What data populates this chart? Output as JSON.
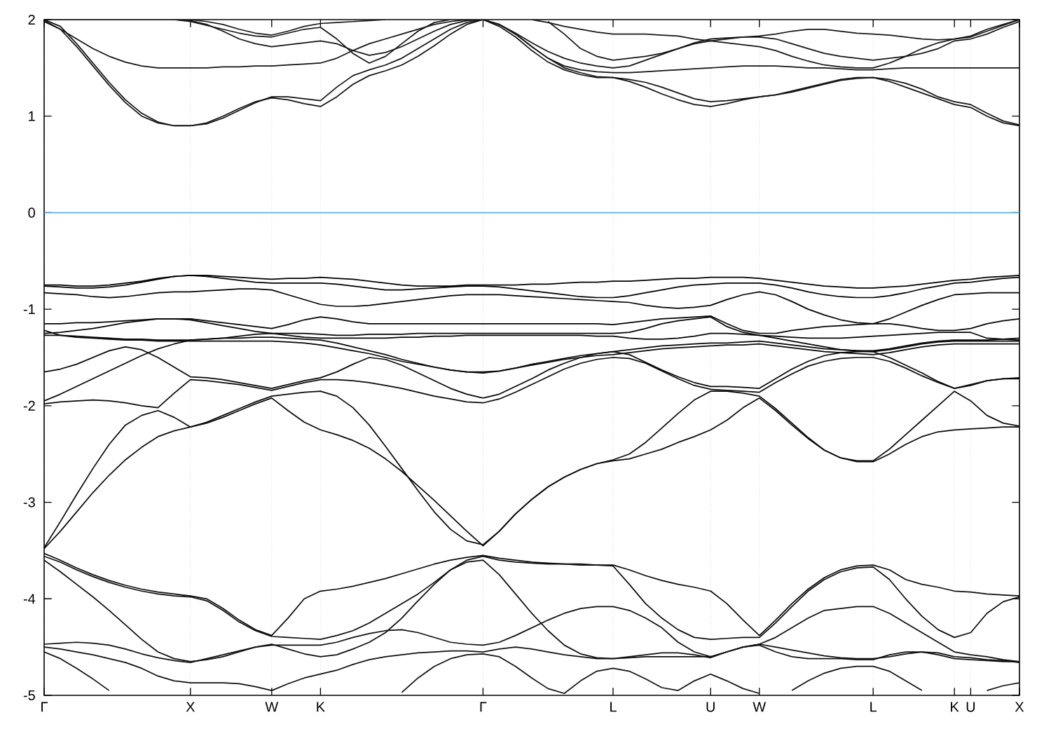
{
  "chart_data": {
    "type": "line",
    "categories": [
      "Γ",
      null,
      null,
      null,
      null,
      null,
      null,
      null,
      null,
      "X",
      null,
      null,
      null,
      null,
      "W",
      null,
      null,
      "K",
      null,
      null,
      null,
      null,
      null,
      null,
      null,
      null,
      null,
      "Γ",
      null,
      null,
      null,
      null,
      null,
      null,
      null,
      "L",
      null,
      null,
      null,
      null,
      null,
      "U",
      null,
      null,
      "W",
      null,
      null,
      null,
      null,
      null,
      null,
      "L",
      null,
      null,
      null,
      null,
      "K",
      "U",
      null,
      null,
      "X"
    ],
    "ylim": [
      -5,
      2
    ],
    "yticks": [
      -5,
      -4,
      -3,
      -2,
      -1,
      0,
      1,
      2
    ],
    "grid": "x",
    "marker": "none",
    "line_style": "solid",
    "ref_lines": [
      {
        "axis": "y",
        "value": 0,
        "color": "#4da6d8"
      }
    ],
    "series": [
      {
        "color": "#000000",
        "values": [
          -0.75,
          -0.75,
          -0.76,
          -0.76,
          -0.75,
          -0.73,
          -0.71,
          -0.68,
          -0.66,
          -0.65,
          -0.65,
          -0.66,
          -0.67,
          -0.68,
          -0.69,
          -0.68,
          -0.68,
          -0.67,
          -0.68,
          -0.69,
          -0.71,
          -0.73,
          -0.75,
          -0.76,
          -0.76,
          -0.76,
          -0.75,
          -0.75,
          -0.75,
          -0.75,
          -0.74,
          -0.74,
          -0.73,
          -0.72,
          -0.72,
          -0.71,
          -0.71,
          -0.7,
          -0.69,
          -0.68,
          -0.68,
          -0.67,
          -0.67,
          -0.67,
          -0.68,
          -0.7,
          -0.72,
          -0.74,
          -0.76,
          -0.77,
          -0.78,
          -0.78,
          -0.77,
          -0.76,
          -0.74,
          -0.72,
          -0.7,
          -0.69,
          -0.67,
          -0.66,
          -0.65
        ]
      },
      {
        "color": "#010101",
        "values": [
          -0.76,
          -0.77,
          -0.78,
          -0.78,
          -0.77,
          -0.75,
          -0.72,
          -0.69,
          -0.66,
          -0.65,
          -0.66,
          -0.68,
          -0.7,
          -0.72,
          -0.73,
          -0.73,
          -0.73,
          -0.73,
          -0.74,
          -0.76,
          -0.78,
          -0.8,
          -0.8,
          -0.79,
          -0.78,
          -0.77,
          -0.76,
          -0.76,
          -0.77,
          -0.79,
          -0.81,
          -0.83,
          -0.85,
          -0.87,
          -0.88,
          -0.88,
          -0.86,
          -0.83,
          -0.8,
          -0.77,
          -0.75,
          -0.74,
          -0.73,
          -0.73,
          -0.73,
          -0.75,
          -0.78,
          -0.82,
          -0.85,
          -0.87,
          -0.88,
          -0.88,
          -0.86,
          -0.83,
          -0.79,
          -0.76,
          -0.73,
          -0.72,
          -0.7,
          -0.68,
          -0.67
        ]
      },
      {
        "color": "#020202",
        "values": [
          -0.83,
          -0.84,
          -0.85,
          -0.87,
          -0.88,
          -0.87,
          -0.85,
          -0.83,
          -0.82,
          -0.82,
          -0.81,
          -0.8,
          -0.79,
          -0.79,
          -0.8,
          -0.85,
          -0.9,
          -0.95,
          -0.97,
          -0.97,
          -0.96,
          -0.94,
          -0.92,
          -0.9,
          -0.88,
          -0.86,
          -0.85,
          -0.85,
          -0.85,
          -0.86,
          -0.87,
          -0.88,
          -0.89,
          -0.9,
          -0.91,
          -0.92,
          -0.93,
          -0.96,
          -0.98,
          -0.99,
          -0.98,
          -0.96,
          -0.9,
          -0.85,
          -0.82,
          -0.85,
          -0.92,
          -1.0,
          -1.06,
          -1.11,
          -1.14,
          -1.15,
          -1.1,
          -1.03,
          -0.96,
          -0.9,
          -0.85,
          -0.84,
          -0.83,
          -0.83,
          -0.83
        ]
      },
      {
        "color": "#030303",
        "values": [
          -1.15,
          -1.15,
          -1.14,
          -1.14,
          -1.13,
          -1.12,
          -1.11,
          -1.1,
          -1.1,
          -1.1,
          -1.12,
          -1.14,
          -1.16,
          -1.18,
          -1.2,
          -1.16,
          -1.11,
          -1.08,
          -1.1,
          -1.13,
          -1.15,
          -1.15,
          -1.15,
          -1.15,
          -1.15,
          -1.15,
          -1.15,
          -1.15,
          -1.15,
          -1.15,
          -1.15,
          -1.15,
          -1.15,
          -1.15,
          -1.15,
          -1.16,
          -1.14,
          -1.12,
          -1.1,
          -1.09,
          -1.08,
          -1.07,
          -1.15,
          -1.22,
          -1.25,
          -1.25,
          -1.22,
          -1.2,
          -1.18,
          -1.17,
          -1.16,
          -1.15,
          -1.15,
          -1.17,
          -1.2,
          -1.22,
          -1.22,
          -1.2,
          -1.15,
          -1.12,
          -1.1
        ]
      },
      {
        "color": "#040404",
        "values": [
          -1.25,
          -1.24,
          -1.22,
          -1.2,
          -1.17,
          -1.14,
          -1.12,
          -1.1,
          -1.1,
          -1.11,
          -1.14,
          -1.17,
          -1.2,
          -1.23,
          -1.25,
          -1.25,
          -1.25,
          -1.26,
          -1.27,
          -1.27,
          -1.26,
          -1.26,
          -1.26,
          -1.25,
          -1.25,
          -1.25,
          -1.25,
          -1.25,
          -1.25,
          -1.25,
          -1.25,
          -1.25,
          -1.25,
          -1.25,
          -1.25,
          -1.25,
          -1.24,
          -1.2,
          -1.15,
          -1.12,
          -1.1,
          -1.08,
          -1.18,
          -1.24,
          -1.27,
          -1.28,
          -1.29,
          -1.3,
          -1.3,
          -1.3,
          -1.29,
          -1.28,
          -1.27,
          -1.26,
          -1.25,
          -1.24,
          -1.24,
          -1.24,
          -1.3,
          -1.31,
          -1.32
        ]
      },
      {
        "color": "#050505",
        "values": [
          -1.27,
          -1.27,
          -1.28,
          -1.29,
          -1.3,
          -1.31,
          -1.31,
          -1.32,
          -1.32,
          -1.32,
          -1.31,
          -1.3,
          -1.28,
          -1.26,
          -1.25,
          -1.27,
          -1.29,
          -1.3,
          -1.3,
          -1.3,
          -1.3,
          -1.3,
          -1.29,
          -1.29,
          -1.28,
          -1.28,
          -1.27,
          -1.27,
          -1.27,
          -1.27,
          -1.27,
          -1.27,
          -1.27,
          -1.27,
          -1.28,
          -1.28,
          -1.3,
          -1.31,
          -1.31,
          -1.3,
          -1.28,
          -1.25,
          -1.25,
          -1.26,
          -1.27,
          -1.3,
          -1.33,
          -1.36,
          -1.39,
          -1.42,
          -1.43,
          -1.43,
          -1.41,
          -1.38,
          -1.35,
          -1.33,
          -1.32,
          -1.32,
          -1.32,
          -1.31,
          -1.3
        ]
      },
      {
        "color": "#060606",
        "values": [
          -1.22,
          -1.27,
          -1.29,
          -1.3,
          -1.31,
          -1.32,
          -1.32,
          -1.33,
          -1.33,
          -1.33,
          -1.33,
          -1.33,
          -1.33,
          -1.33,
          -1.33,
          -1.34,
          -1.35,
          -1.37,
          -1.4,
          -1.43,
          -1.46,
          -1.5,
          -1.54,
          -1.57,
          -1.6,
          -1.63,
          -1.65,
          -1.65,
          -1.64,
          -1.61,
          -1.57,
          -1.54,
          -1.51,
          -1.48,
          -1.46,
          -1.44,
          -1.42,
          -1.4,
          -1.38,
          -1.37,
          -1.36,
          -1.35,
          -1.35,
          -1.34,
          -1.33,
          -1.35,
          -1.37,
          -1.39,
          -1.41,
          -1.42,
          -1.43,
          -1.44,
          -1.42,
          -1.39,
          -1.36,
          -1.34,
          -1.33,
          -1.33,
          -1.33,
          -1.33,
          -1.33
        ]
      },
      {
        "color": "#070707",
        "values": [
          -1.65,
          -1.62,
          -1.57,
          -1.5,
          -1.43,
          -1.39,
          -1.42,
          -1.5,
          -1.6,
          -1.7,
          -1.71,
          -1.73,
          -1.76,
          -1.79,
          -1.82,
          -1.78,
          -1.74,
          -1.71,
          -1.65,
          -1.57,
          -1.5,
          -1.52,
          -1.58,
          -1.66,
          -1.74,
          -1.82,
          -1.88,
          -1.92,
          -1.88,
          -1.8,
          -1.72,
          -1.63,
          -1.56,
          -1.5,
          -1.46,
          -1.44,
          -1.47,
          -1.55,
          -1.63,
          -1.7,
          -1.76,
          -1.8,
          -1.8,
          -1.81,
          -1.82,
          -1.72,
          -1.62,
          -1.54,
          -1.48,
          -1.45,
          -1.44,
          -1.44,
          -1.5,
          -1.58,
          -1.66,
          -1.75,
          -1.82,
          -1.79,
          -1.74,
          -1.72,
          -1.71
        ]
      },
      {
        "color": "#080808",
        "values": [
          -1.95,
          -1.88,
          -1.8,
          -1.72,
          -1.64,
          -1.56,
          -1.48,
          -1.41,
          -1.36,
          -1.32,
          -1.31,
          -1.3,
          -1.3,
          -1.29,
          -1.29,
          -1.3,
          -1.31,
          -1.32,
          -1.35,
          -1.39,
          -1.43,
          -1.47,
          -1.52,
          -1.56,
          -1.6,
          -1.63,
          -1.65,
          -1.66,
          -1.64,
          -1.61,
          -1.58,
          -1.55,
          -1.52,
          -1.5,
          -1.48,
          -1.47,
          -1.45,
          -1.43,
          -1.41,
          -1.4,
          -1.39,
          -1.38,
          -1.37,
          -1.37,
          -1.36,
          -1.38,
          -1.4,
          -1.42,
          -1.44,
          -1.45,
          -1.46,
          -1.47,
          -1.45,
          -1.42,
          -1.39,
          -1.37,
          -1.36,
          -1.36,
          -1.36,
          -1.36,
          -1.36
        ]
      },
      {
        "color": "#090909",
        "values": [
          -1.98,
          -1.96,
          -1.95,
          -1.94,
          -1.95,
          -1.97,
          -2.0,
          -2.02,
          -1.87,
          -1.73,
          -1.74,
          -1.76,
          -1.78,
          -1.81,
          -1.84,
          -1.8,
          -1.76,
          -1.73,
          -1.73,
          -1.74,
          -1.76,
          -1.79,
          -1.82,
          -1.86,
          -1.9,
          -1.93,
          -1.96,
          -1.97,
          -1.93,
          -1.86,
          -1.78,
          -1.7,
          -1.62,
          -1.56,
          -1.52,
          -1.5,
          -1.51,
          -1.56,
          -1.64,
          -1.72,
          -1.79,
          -1.83,
          -1.84,
          -1.85,
          -1.86,
          -1.76,
          -1.67,
          -1.59,
          -1.54,
          -1.51,
          -1.5,
          -1.5,
          -1.54,
          -1.61,
          -1.69,
          -1.76,
          -1.82,
          -1.78,
          -1.74,
          -1.72,
          -1.72
        ]
      },
      {
        "color": "#0a0a0a",
        "values": [
          -3.47,
          -3.2,
          -2.92,
          -2.65,
          -2.4,
          -2.2,
          -2.1,
          -2.05,
          -2.12,
          -2.22,
          -2.18,
          -2.12,
          -2.05,
          -1.98,
          -1.92,
          -2.05,
          -2.17,
          -2.25,
          -2.3,
          -2.36,
          -2.44,
          -2.55,
          -2.68,
          -2.83,
          -2.98,
          -3.14,
          -3.3,
          -3.45,
          -3.3,
          -3.12,
          -2.97,
          -2.84,
          -2.74,
          -2.66,
          -2.6,
          -2.57,
          -2.55,
          -2.5,
          -2.45,
          -2.38,
          -2.32,
          -2.25,
          -2.15,
          -2.02,
          -1.92,
          -2.05,
          -2.2,
          -2.34,
          -2.46,
          -2.54,
          -2.58,
          -2.58,
          -2.5,
          -2.4,
          -2.32,
          -2.27,
          -2.25,
          -2.24,
          -2.23,
          -2.22,
          -2.22
        ]
      },
      {
        "color": "#0b0b0b",
        "values": [
          -3.48,
          -3.3,
          -3.1,
          -2.9,
          -2.72,
          -2.56,
          -2.43,
          -2.32,
          -2.26,
          -2.22,
          -2.17,
          -2.1,
          -2.03,
          -1.96,
          -1.9,
          -1.88,
          -1.86,
          -1.85,
          -1.9,
          -2.02,
          -2.2,
          -2.42,
          -2.65,
          -2.88,
          -3.1,
          -3.28,
          -3.4,
          -3.44,
          -3.3,
          -3.12,
          -2.97,
          -2.84,
          -2.74,
          -2.66,
          -2.6,
          -2.56,
          -2.5,
          -2.38,
          -2.23,
          -2.08,
          -1.94,
          -1.85,
          -1.85,
          -1.87,
          -1.9,
          -2.03,
          -2.18,
          -2.33,
          -2.46,
          -2.54,
          -2.57,
          -2.57,
          -2.45,
          -2.3,
          -2.15,
          -2.0,
          -1.85,
          -1.95,
          -2.1,
          -2.18,
          -2.21
        ]
      },
      {
        "color": "#0c0c0c",
        "values": [
          -3.53,
          -3.6,
          -3.68,
          -3.75,
          -3.81,
          -3.86,
          -3.9,
          -3.93,
          -3.95,
          -3.97,
          -4.0,
          -4.1,
          -4.22,
          -4.32,
          -4.38,
          -4.2,
          -4.0,
          -3.92,
          -3.9,
          -3.87,
          -3.83,
          -3.79,
          -3.74,
          -3.69,
          -3.64,
          -3.6,
          -3.57,
          -3.55,
          -3.58,
          -3.6,
          -3.62,
          -3.63,
          -3.64,
          -3.64,
          -3.65,
          -3.65,
          -3.7,
          -3.76,
          -3.81,
          -3.85,
          -3.88,
          -3.92,
          -4.05,
          -4.22,
          -4.38,
          -4.22,
          -4.05,
          -3.9,
          -3.78,
          -3.7,
          -3.66,
          -3.65,
          -3.7,
          -3.8,
          -3.85,
          -3.88,
          -3.92,
          -3.93,
          -3.95,
          -3.96,
          -3.97
        ]
      },
      {
        "color": "#0d0d0d",
        "values": [
          -3.56,
          -3.62,
          -3.7,
          -3.77,
          -3.83,
          -3.88,
          -3.92,
          -3.95,
          -3.97,
          -3.98,
          -4.02,
          -4.12,
          -4.24,
          -4.33,
          -4.39,
          -4.4,
          -4.41,
          -4.42,
          -4.38,
          -4.33,
          -4.25,
          -4.15,
          -4.05,
          -3.95,
          -3.83,
          -3.7,
          -3.6,
          -3.56,
          -3.6,
          -3.62,
          -3.63,
          -3.64,
          -3.64,
          -3.65,
          -3.65,
          -3.66,
          -3.85,
          -4.05,
          -4.2,
          -4.32,
          -4.4,
          -4.42,
          -4.41,
          -4.4,
          -4.4,
          -4.25,
          -4.08,
          -3.92,
          -3.8,
          -3.72,
          -3.68,
          -3.67,
          -3.8,
          -4.0,
          -4.18,
          -4.32,
          -4.4,
          -4.35,
          -4.15,
          -4.03,
          -3.98
        ]
      },
      {
        "color": "#0e0e0e",
        "values": [
          -3.6,
          -3.72,
          -3.85,
          -3.98,
          -4.12,
          -4.27,
          -4.42,
          -4.55,
          -4.62,
          -4.65,
          -4.63,
          -4.6,
          -4.55,
          -4.5,
          -4.47,
          -4.52,
          -4.57,
          -4.6,
          -4.58,
          -4.52,
          -4.45,
          -4.35,
          -4.2,
          -4.02,
          -3.85,
          -3.7,
          -3.62,
          -3.6,
          -3.75,
          -3.95,
          -4.15,
          -4.33,
          -4.48,
          -4.57,
          -4.61,
          -4.62,
          -4.61,
          -4.6,
          -4.6,
          -4.6,
          -4.6,
          -4.6,
          -4.55,
          -4.5,
          -4.47,
          -4.4,
          -4.3,
          -4.2,
          -4.12,
          -4.1,
          -4.08,
          -4.08,
          -4.15,
          -4.25,
          -4.35,
          -4.45,
          -4.55,
          -4.58,
          -4.6,
          -4.63,
          -4.65
        ]
      },
      {
        "color": "#0f0f0f",
        "values": [
          -4.47,
          -4.46,
          -4.45,
          -4.46,
          -4.48,
          -4.52,
          -4.57,
          -4.61,
          -4.64,
          -4.66,
          -4.62,
          -4.58,
          -4.54,
          -4.5,
          -4.48,
          -4.48,
          -4.48,
          -4.48,
          -4.45,
          -4.4,
          -4.36,
          -4.33,
          -4.32,
          -4.35,
          -4.4,
          -4.45,
          -4.47,
          -4.48,
          -4.45,
          -4.38,
          -4.3,
          -4.22,
          -4.15,
          -4.1,
          -4.08,
          -4.08,
          -4.12,
          -4.2,
          -4.3,
          -4.45,
          -4.55,
          -4.6,
          -4.55,
          -4.5,
          -4.47,
          -4.5,
          -4.53,
          -4.56,
          -4.59,
          -4.61,
          -4.62,
          -4.62,
          -4.6,
          -4.57,
          -4.55,
          -4.56,
          -4.6,
          -4.61,
          -4.63,
          -4.64,
          -4.66
        ]
      },
      {
        "color": "#101010",
        "values": [
          -4.5,
          -4.52,
          -4.55,
          -4.58,
          -4.62,
          -4.66,
          -4.72,
          -4.8,
          -4.85,
          -4.87,
          -4.87,
          -4.87,
          -4.88,
          -4.91,
          -4.95,
          -4.88,
          -4.82,
          -4.78,
          -4.74,
          -4.68,
          -4.63,
          -4.6,
          -4.58,
          -4.56,
          -4.55,
          -4.54,
          -4.54,
          -4.55,
          -4.52,
          -4.5,
          -4.52,
          -4.55,
          -4.58,
          -4.6,
          -4.62,
          -4.62,
          -4.6,
          -4.58,
          -4.56,
          -4.56,
          -4.58,
          -4.61,
          -4.55,
          -4.5,
          -4.48,
          -4.55,
          -4.6,
          -4.62,
          -4.62,
          -4.62,
          -4.63,
          -4.63,
          -4.58,
          -4.55,
          -4.55,
          -4.58,
          -4.62,
          -4.63,
          -4.64,
          -4.65,
          -4.65
        ]
      },
      {
        "color": "#111111",
        "values": [
          -4.55,
          -4.62,
          -4.72,
          -4.83,
          -4.95,
          null,
          null,
          null,
          null,
          null,
          null,
          null,
          null,
          null,
          null,
          null,
          null,
          null,
          null,
          null,
          null,
          null,
          -4.97,
          -4.82,
          -4.7,
          -4.62,
          -4.58,
          -4.57,
          -4.6,
          -4.7,
          -4.82,
          -4.93,
          -4.98,
          -4.85,
          -4.75,
          -4.72,
          -4.75,
          -4.83,
          -4.92,
          -4.95,
          -4.85,
          -4.78,
          -4.85,
          -4.93,
          -4.98,
          null,
          -4.95,
          -4.85,
          -4.77,
          -4.72,
          -4.7,
          -4.7,
          -4.75,
          -4.85,
          -4.95,
          null,
          null,
          null,
          -4.95,
          -4.9,
          -4.87
        ]
      },
      {
        "color": "#121212",
        "values": [
          2.0,
          1.93,
          1.75,
          1.55,
          1.35,
          1.17,
          1.03,
          0.94,
          0.9,
          0.9,
          0.93,
          1.0,
          1.08,
          1.15,
          1.19,
          1.17,
          1.13,
          1.1,
          1.2,
          1.33,
          1.42,
          1.47,
          1.53,
          1.62,
          1.73,
          1.85,
          1.95,
          2.0,
          1.95,
          1.85,
          1.72,
          1.6,
          1.5,
          1.45,
          1.41,
          1.4,
          1.36,
          1.3,
          1.23,
          1.17,
          1.12,
          1.1,
          1.13,
          1.17,
          1.2,
          1.22,
          1.26,
          1.3,
          1.34,
          1.38,
          1.4,
          1.4,
          1.36,
          1.3,
          1.24,
          1.18,
          1.12,
          1.09,
          1.0,
          0.93,
          0.9
        ]
      },
      {
        "color": "#131313",
        "values": [
          1.99,
          1.9,
          1.72,
          1.52,
          1.32,
          1.14,
          1.0,
          0.93,
          0.9,
          0.9,
          0.92,
          0.98,
          1.06,
          1.14,
          1.2,
          1.2,
          1.18,
          1.16,
          1.3,
          1.42,
          1.48,
          1.53,
          1.6,
          1.7,
          1.8,
          1.9,
          1.97,
          2.0,
          1.93,
          1.82,
          1.68,
          1.56,
          1.48,
          1.43,
          1.4,
          1.4,
          1.38,
          1.35,
          1.3,
          1.24,
          1.18,
          1.15,
          1.16,
          1.18,
          1.2,
          1.22,
          1.25,
          1.29,
          1.33,
          1.37,
          1.39,
          1.4,
          1.38,
          1.34,
          1.28,
          1.2,
          1.15,
          1.12,
          1.03,
          0.95,
          0.91
        ]
      },
      {
        "color": "#141414",
        "values": [
          1.98,
          1.9,
          1.8,
          1.7,
          1.62,
          1.56,
          1.52,
          1.5,
          1.5,
          1.5,
          1.5,
          1.51,
          1.51,
          1.52,
          1.52,
          1.53,
          1.54,
          1.55,
          1.6,
          1.68,
          1.75,
          1.8,
          1.85,
          1.9,
          1.95,
          1.98,
          2.0,
          2.0,
          1.95,
          1.85,
          1.72,
          1.6,
          1.52,
          1.48,
          1.46,
          1.45,
          1.45,
          1.46,
          1.47,
          1.48,
          1.49,
          1.5,
          1.51,
          1.52,
          1.52,
          1.52,
          1.51,
          1.5,
          1.5,
          1.49,
          1.48,
          1.48,
          1.49,
          1.5,
          1.5,
          1.5,
          1.5,
          1.5,
          1.5,
          1.5,
          1.5
        ]
      },
      {
        "color": "#151515",
        "values": [
          2.0,
          2.0,
          2.0,
          2.0,
          2.0,
          2.0,
          2.0,
          2.0,
          2.0,
          1.99,
          1.95,
          1.88,
          1.8,
          1.75,
          1.72,
          1.74,
          1.76,
          1.78,
          1.75,
          1.68,
          1.63,
          1.66,
          1.72,
          1.8,
          1.88,
          1.95,
          1.99,
          2.0,
          1.95,
          1.86,
          1.76,
          1.67,
          1.6,
          1.55,
          1.52,
          1.5,
          1.52,
          1.58,
          1.64,
          1.7,
          1.75,
          1.78,
          1.76,
          1.74,
          1.72,
          1.68,
          1.62,
          1.57,
          1.53,
          1.51,
          1.5,
          1.5,
          1.55,
          1.62,
          1.7,
          1.76,
          1.8,
          1.82,
          1.88,
          1.94,
          2.0
        ]
      },
      {
        "color": "#161616",
        "values": [
          null,
          null,
          null,
          null,
          null,
          null,
          null,
          null,
          2.0,
          1.98,
          1.94,
          1.9,
          1.86,
          1.83,
          1.82,
          1.86,
          1.9,
          1.92,
          1.8,
          1.65,
          1.55,
          1.62,
          1.75,
          1.88,
          1.97,
          2.0,
          null,
          null,
          null,
          null,
          null,
          1.98,
          1.85,
          1.7,
          1.62,
          1.58,
          1.6,
          1.62,
          1.65,
          1.7,
          1.76,
          1.8,
          1.81,
          1.82,
          1.82,
          1.8,
          1.75,
          1.7,
          1.65,
          1.62,
          1.6,
          1.58,
          1.6,
          1.62,
          1.65,
          1.7,
          1.78,
          1.8,
          1.85,
          1.92,
          1.98
        ]
      },
      {
        "color": "#171717",
        "values": [
          null,
          null,
          null,
          null,
          null,
          null,
          null,
          null,
          null,
          2.0,
          1.98,
          1.95,
          1.9,
          1.86,
          1.84,
          1.88,
          1.93,
          1.96,
          1.97,
          1.98,
          1.99,
          2.0,
          null,
          null,
          null,
          null,
          null,
          null,
          null,
          null,
          2.0,
          1.97,
          1.93,
          1.9,
          1.87,
          1.85,
          1.85,
          1.85,
          1.84,
          1.83,
          1.8,
          1.78,
          1.8,
          1.82,
          1.83,
          1.85,
          1.88,
          1.9,
          1.9,
          1.88,
          1.86,
          1.85,
          1.84,
          1.82,
          1.8,
          1.79,
          1.8,
          1.83,
          1.9,
          1.95,
          2.0
        ]
      }
    ]
  }
}
